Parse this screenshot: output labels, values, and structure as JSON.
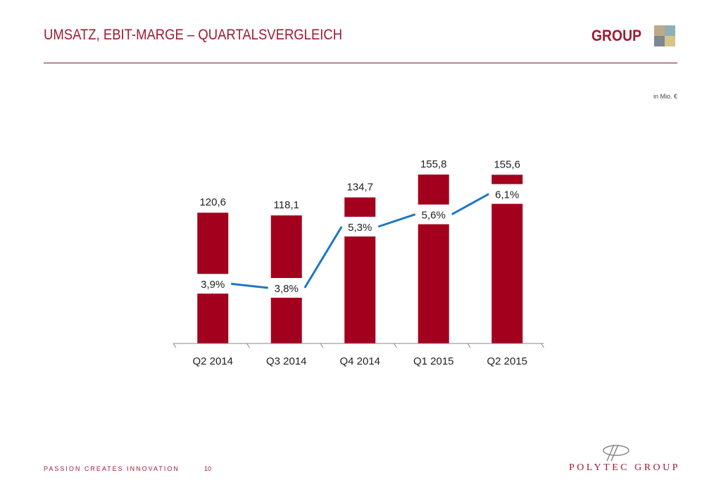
{
  "header": {
    "title": "UMSATZ, EBIT-MARGE – QUARTALSVERGLEICH",
    "group_label": "GROUP",
    "unit": "in Mio. €"
  },
  "footer": {
    "slogan": "PASSION  CREATES  INNOVATION",
    "page": "10",
    "brand": "POLYTEC GROUP"
  },
  "colors": {
    "bar": "#a3001e",
    "line": "#1f78c1",
    "accent": "#9e1b32"
  },
  "chart_data": {
    "type": "bar",
    "categories": [
      "Q2 2014",
      "Q3 2014",
      "Q4 2014",
      "Q1 2015",
      "Q2 2015"
    ],
    "series": [
      {
        "name": "Umsatz",
        "type": "bar",
        "values": [
          120.6,
          118.1,
          134.7,
          155.8,
          155.6
        ],
        "labels": [
          "120,6",
          "118,1",
          "134,7",
          "155,8",
          "155,6"
        ]
      },
      {
        "name": "EBIT-Marge",
        "type": "line",
        "values": [
          3.9,
          3.8,
          5.3,
          5.6,
          6.1
        ],
        "labels": [
          "3,9%",
          "3,8%",
          "5,3%",
          "5,6%",
          "6,1%"
        ]
      }
    ],
    "ylim": [
      0,
      160
    ],
    "y2lim": [
      0,
      8
    ],
    "grid": false,
    "legend": "none"
  }
}
